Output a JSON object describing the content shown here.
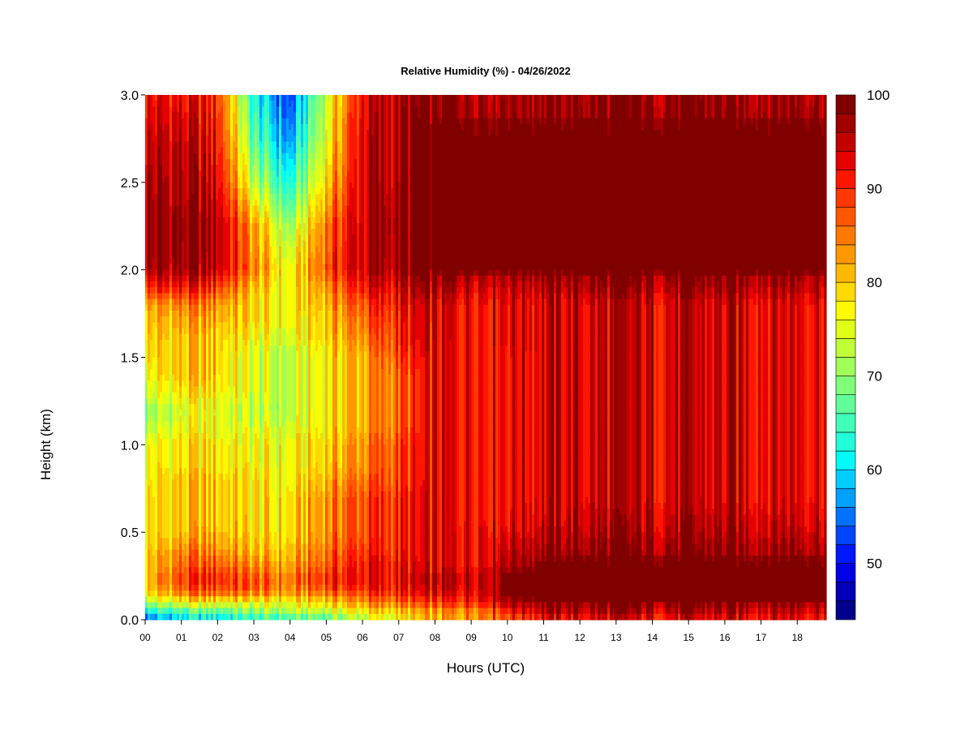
{
  "chart_data": {
    "type": "heatmap",
    "title": "Relative Humidity (%) - 04/26/2022",
    "xlabel": "Hours (UTC)",
    "ylabel": "Height (km)",
    "xlim": [
      0,
      18.8
    ],
    "ylim": [
      0,
      3.0
    ],
    "x_ticks": [
      "00",
      "01",
      "02",
      "03",
      "04",
      "05",
      "06",
      "07",
      "08",
      "09",
      "10",
      "11",
      "12",
      "13",
      "14",
      "15",
      "16",
      "17",
      "18"
    ],
    "y_ticks": [
      "0.0",
      "0.5",
      "1.0",
      "1.5",
      "2.0",
      "2.5",
      "3.0"
    ],
    "colorbar": {
      "min": 44,
      "max": 100,
      "step": 2,
      "ticks": [
        "50",
        "60",
        "70",
        "80",
        "90",
        "100"
      ],
      "colors": [
        "#00008b",
        "#0000b8",
        "#0000e6",
        "#0018ff",
        "#0045ff",
        "#0072ff",
        "#00a0ff",
        "#00cdff",
        "#00fbf8",
        "#20ffd8",
        "#40ffb8",
        "#60ff98",
        "#80ff78",
        "#a0ff58",
        "#c0ff38",
        "#e0ff18",
        "#fffa00",
        "#ffd900",
        "#ffb900",
        "#ff9800",
        "#ff7800",
        "#ff5700",
        "#ff3700",
        "#ff1600",
        "#e60000",
        "#c30000",
        "#a00000",
        "#800000"
      ]
    },
    "height_levels_km": [
      0.0,
      0.05,
      0.1,
      0.15,
      0.2,
      0.25,
      0.3,
      0.4,
      0.5,
      0.6,
      0.7,
      0.8,
      0.9,
      1.0,
      1.1,
      1.2,
      1.3,
      1.4,
      1.5,
      1.6,
      1.7,
      1.8,
      1.9,
      2.0,
      2.25,
      2.5,
      2.75,
      3.0
    ],
    "hour_columns": [
      0,
      1,
      2,
      3,
      4,
      5,
      6,
      7,
      8,
      9,
      10,
      11,
      12,
      13,
      14,
      15,
      16,
      17,
      18
    ],
    "rh_grid_percent": [
      [
        52,
        58,
        60,
        62,
        64,
        66,
        72,
        76,
        80,
        84,
        88,
        92,
        92,
        92,
        92,
        92,
        92,
        93,
        93
      ],
      [
        62,
        66,
        68,
        70,
        72,
        74,
        78,
        80,
        82,
        86,
        92,
        96,
        96,
        96,
        96,
        96,
        96,
        96,
        96
      ],
      [
        72,
        76,
        78,
        76,
        76,
        80,
        84,
        86,
        88,
        92,
        98,
        99,
        99,
        99,
        99,
        99,
        99,
        99,
        99
      ],
      [
        78,
        84,
        86,
        84,
        82,
        86,
        88,
        90,
        92,
        94,
        99,
        99,
        99,
        99,
        99,
        99,
        99,
        99,
        99
      ],
      [
        80,
        88,
        90,
        88,
        84,
        90,
        92,
        92,
        94,
        96,
        99,
        99,
        99,
        99,
        99,
        99,
        99,
        99,
        99
      ],
      [
        80,
        88,
        90,
        86,
        84,
        90,
        92,
        92,
        94,
        96,
        99,
        99,
        99,
        99,
        99,
        99,
        99,
        99,
        99
      ],
      [
        80,
        86,
        88,
        84,
        82,
        88,
        92,
        92,
        92,
        94,
        98,
        99,
        99,
        99,
        99,
        99,
        99,
        99,
        99
      ],
      [
        79,
        84,
        84,
        80,
        80,
        86,
        90,
        90,
        92,
        94,
        96,
        98,
        98,
        98,
        98,
        98,
        98,
        98,
        98
      ],
      [
        78,
        80,
        82,
        78,
        78,
        84,
        88,
        90,
        92,
        94,
        94,
        96,
        96,
        96,
        96,
        96,
        96,
        96,
        96
      ],
      [
        78,
        80,
        80,
        78,
        78,
        84,
        88,
        90,
        92,
        93,
        93,
        95,
        95,
        95,
        95,
        95,
        95,
        95,
        95
      ],
      [
        78,
        80,
        80,
        78,
        78,
        84,
        88,
        90,
        92,
        93,
        93,
        94,
        94,
        94,
        94,
        94,
        94,
        94,
        94
      ],
      [
        77,
        80,
        80,
        78,
        76,
        82,
        86,
        88,
        92,
        93,
        93,
        94,
        94,
        94,
        94,
        94,
        94,
        94,
        94
      ],
      [
        76,
        78,
        78,
        76,
        76,
        80,
        84,
        88,
        92,
        93,
        93,
        94,
        94,
        94,
        94,
        94,
        94,
        94,
        94
      ],
      [
        76,
        78,
        78,
        76,
        76,
        80,
        84,
        88,
        92,
        93,
        93,
        94,
        94,
        94,
        94,
        94,
        94,
        94,
        94
      ],
      [
        72,
        76,
        76,
        74,
        74,
        78,
        82,
        86,
        92,
        93,
        93,
        94,
        94,
        94,
        94,
        94,
        94,
        94,
        94
      ],
      [
        70,
        74,
        76,
        72,
        72,
        78,
        82,
        86,
        92,
        93,
        93,
        94,
        94,
        94,
        94,
        94,
        94,
        94,
        94
      ],
      [
        74,
        78,
        78,
        74,
        72,
        78,
        82,
        86,
        92,
        93,
        93,
        94,
        94,
        94,
        94,
        94,
        94,
        94,
        94
      ],
      [
        76,
        80,
        80,
        74,
        72,
        78,
        82,
        86,
        92,
        93,
        93,
        94,
        94,
        94,
        94,
        94,
        94,
        94,
        94
      ],
      [
        78,
        80,
        80,
        74,
        72,
        78,
        82,
        88,
        92,
        93,
        93,
        94,
        94,
        94,
        94,
        94,
        94,
        94,
        94
      ],
      [
        79,
        80,
        80,
        76,
        74,
        80,
        84,
        90,
        93,
        93,
        94,
        94,
        94,
        94,
        94,
        94,
        94,
        94,
        94
      ],
      [
        80,
        82,
        82,
        78,
        76,
        80,
        86,
        90,
        93,
        93,
        94,
        94,
        94,
        94,
        94,
        94,
        94,
        94,
        94
      ],
      [
        82,
        84,
        84,
        78,
        76,
        82,
        88,
        92,
        93,
        93,
        94,
        94,
        94,
        94,
        94,
        94,
        94,
        94,
        94
      ],
      [
        90,
        92,
        90,
        80,
        76,
        84,
        92,
        94,
        96,
        96,
        96,
        97,
        97,
        97,
        97,
        97,
        97,
        97,
        97
      ],
      [
        96,
        97,
        96,
        84,
        76,
        88,
        95,
        97,
        99,
        99,
        99,
        99,
        99,
        99,
        99,
        99,
        99,
        99,
        99
      ],
      [
        97,
        98,
        97,
        82,
        70,
        86,
        95,
        98,
        99,
        99,
        99,
        99,
        99,
        99,
        99,
        99,
        99,
        99,
        99
      ],
      [
        96,
        96,
        94,
        72,
        62,
        80,
        94,
        97,
        99,
        99,
        99,
        99,
        99,
        99,
        99,
        99,
        99,
        99,
        99
      ],
      [
        94,
        95,
        92,
        66,
        56,
        76,
        94,
        97,
        99,
        99,
        99,
        99,
        99,
        99,
        99,
        99,
        99,
        99,
        99
      ],
      [
        92,
        92,
        90,
        62,
        52,
        74,
        93,
        96,
        98,
        98,
        98,
        98,
        98,
        98,
        98,
        98,
        98,
        98,
        98
      ]
    ]
  }
}
